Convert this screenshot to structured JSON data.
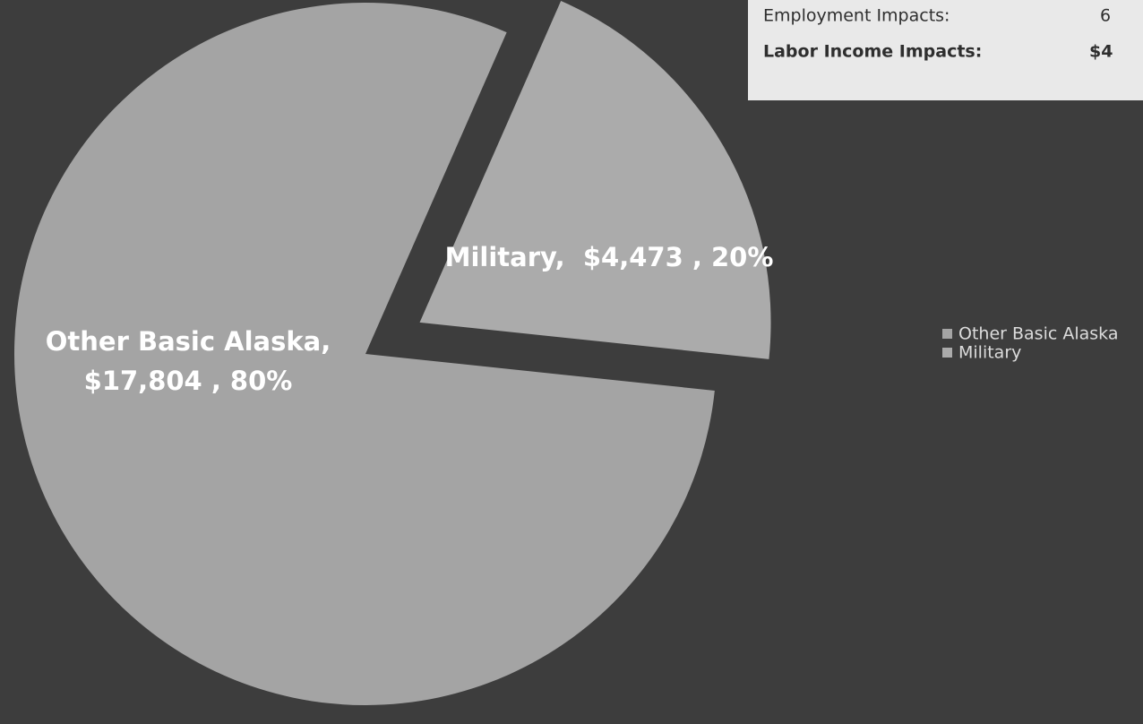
{
  "chart_data": {
    "type": "pie",
    "categories": [
      "Other Basic Alaska",
      "Military"
    ],
    "values": [
      17804,
      4473
    ],
    "value_labels": [
      "Other Basic Alaska, $17,804 , 80%",
      "Military,  $4,473 , 20%"
    ],
    "colors": [
      "#a4a4a4",
      "#ababab"
    ],
    "legend": "right",
    "info_box": {
      "rows": [
        {
          "label": "Employment Impacts:",
          "value": "6"
        },
        {
          "label": "Labor Income Impacts:",
          "value": "$4"
        }
      ]
    }
  }
}
